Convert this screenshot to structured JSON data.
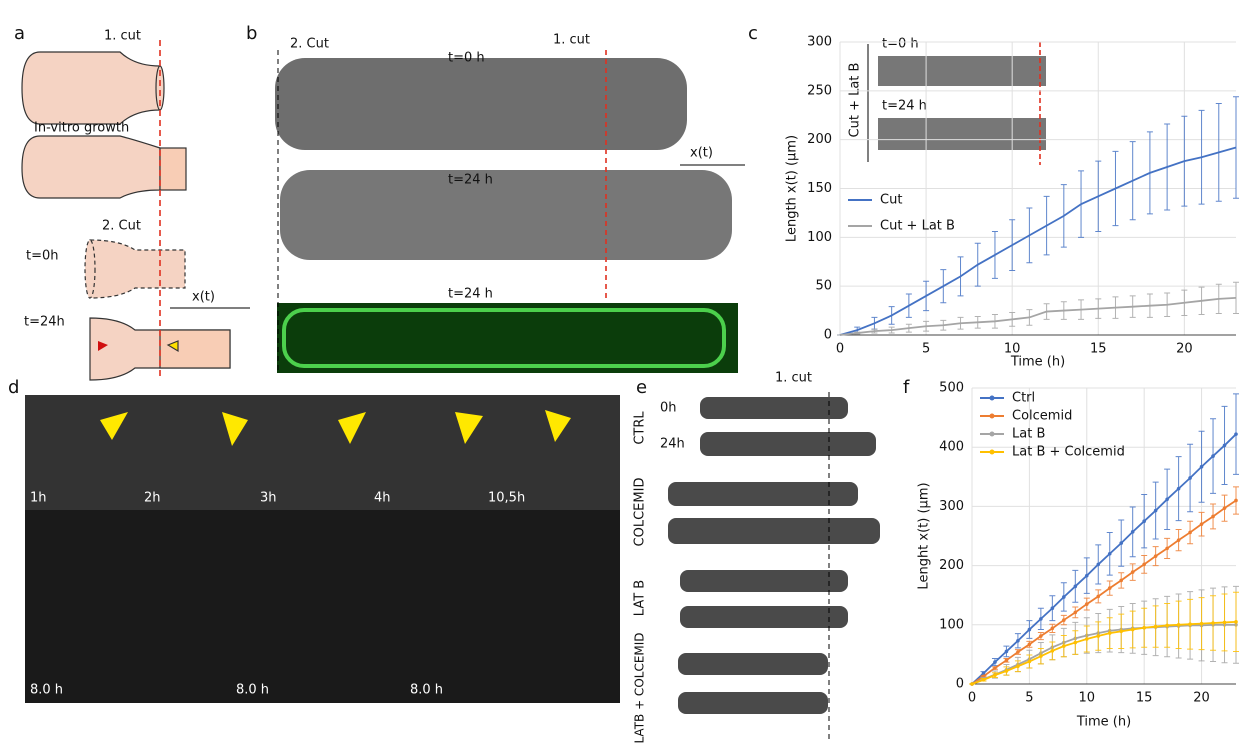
{
  "panel_labels": [
    "a",
    "b",
    "c",
    "d",
    "e",
    "f"
  ],
  "panel_a": {
    "cut1": "1. cut",
    "growth": "In-vitro growth",
    "cut2": "2. Cut",
    "t0": "t=0h",
    "t24": "t=24h",
    "xt": "x(t)"
  },
  "panel_b": {
    "cut2": "2. Cut",
    "cut1": "1. cut",
    "t0": "t=0 h",
    "t24": "t=24 h",
    "xt": "x(t)",
    "t24b": "t=24 h"
  },
  "panel_c_inset": {
    "t0": "t=0 h",
    "t24": "t=24 h",
    "condition": "Cut + Lat B"
  },
  "panel_d": {
    "times": [
      "1h",
      "2h",
      "3h",
      "4h",
      "10,5h"
    ],
    "bottom_times": [
      "8.0 h",
      "8.0 h",
      "8.0 h"
    ]
  },
  "panel_e": {
    "cut1": "1. cut",
    "t0": "0h",
    "t24": "24h",
    "conditions": [
      "CTRL",
      "COLCEMID",
      "LAT B",
      "LATB + COLCEMID"
    ]
  },
  "chart_data": [
    {
      "type": "line",
      "xlabel": "Time (h)",
      "ylabel": "Length x(t)  (µm)",
      "xlim": [
        0,
        23
      ],
      "ylim": [
        0,
        300
      ],
      "xticks": [
        0,
        5,
        10,
        15,
        20
      ],
      "yticks": [
        0,
        50,
        100,
        150,
        200,
        250,
        300
      ],
      "grid": true,
      "legend": "center-left",
      "markers": false,
      "x": [
        0,
        1,
        2,
        3,
        4,
        5,
        6,
        7,
        8,
        9,
        10,
        11,
        12,
        13,
        14,
        15,
        16,
        17,
        18,
        19,
        20,
        21,
        22,
        23
      ],
      "series": [
        {
          "name": "Cut",
          "color": "#4472c4",
          "values": [
            0,
            5,
            12,
            20,
            30,
            40,
            50,
            60,
            72,
            82,
            92,
            102,
            112,
            122,
            134,
            142,
            150,
            158,
            166,
            172,
            178,
            182,
            187,
            192
          ],
          "errors": [
            0,
            3,
            6,
            9,
            12,
            15,
            17,
            20,
            22,
            24,
            26,
            28,
            30,
            32,
            34,
            36,
            38,
            40,
            42,
            44,
            46,
            48,
            50,
            52
          ]
        },
        {
          "name": "Cut + Lat B",
          "color": "#a5a5a5",
          "values": [
            0,
            2,
            4,
            5,
            7,
            9,
            10,
            12,
            13,
            14,
            16,
            18,
            24,
            25,
            26,
            27,
            28,
            29,
            30,
            31,
            33,
            35,
            37,
            38
          ],
          "errors": [
            0,
            1,
            2,
            3,
            4,
            5,
            5,
            6,
            6,
            7,
            7,
            8,
            8,
            9,
            10,
            10,
            11,
            11,
            12,
            12,
            13,
            14,
            15,
            16
          ]
        }
      ]
    },
    {
      "type": "line",
      "xlabel": "Time (h)",
      "ylabel": "Lenght x(t)  (µm)",
      "xlim": [
        0,
        23
      ],
      "ylim": [
        0,
        500
      ],
      "xticks": [
        0,
        5,
        10,
        15,
        20
      ],
      "yticks": [
        0,
        100,
        200,
        300,
        400,
        500
      ],
      "grid": true,
      "legend": "upper-left",
      "markers": true,
      "x": [
        0,
        1,
        2,
        3,
        4,
        5,
        6,
        7,
        8,
        9,
        10,
        11,
        12,
        13,
        14,
        15,
        16,
        17,
        18,
        19,
        20,
        21,
        22,
        23
      ],
      "series": [
        {
          "name": "Ctrl",
          "color": "#4472c4",
          "values": [
            0,
            18,
            37,
            55,
            73,
            92,
            110,
            128,
            147,
            165,
            183,
            202,
            220,
            238,
            257,
            275,
            293,
            312,
            330,
            348,
            367,
            385,
            403,
            422
          ],
          "errors": [
            0,
            3,
            6,
            9,
            12,
            15,
            18,
            21,
            24,
            27,
            30,
            33,
            36,
            39,
            42,
            45,
            48,
            51,
            54,
            57,
            60,
            63,
            66,
            68
          ]
        },
        {
          "name": "Colcemid",
          "color": "#ed7d31",
          "values": [
            0,
            13,
            27,
            40,
            54,
            67,
            81,
            94,
            108,
            121,
            135,
            148,
            162,
            175,
            189,
            202,
            216,
            229,
            243,
            256,
            270,
            283,
            297,
            310
          ],
          "errors": [
            0,
            1,
            2,
            3,
            4,
            5,
            6,
            7,
            8,
            9,
            10,
            11,
            12,
            13,
            14,
            15,
            16,
            17,
            18,
            19,
            20,
            21,
            22,
            23
          ]
        },
        {
          "name": "Lat B",
          "color": "#a5a5a5",
          "values": [
            0,
            8,
            16,
            24,
            33,
            42,
            52,
            62,
            70,
            77,
            82,
            86,
            90,
            92,
            94,
            95,
            96,
            97,
            98,
            99,
            99,
            100,
            100,
            100
          ],
          "errors": [
            0,
            3,
            6,
            9,
            12,
            15,
            18,
            21,
            24,
            27,
            30,
            33,
            36,
            39,
            42,
            45,
            48,
            51,
            54,
            57,
            60,
            62,
            64,
            65
          ]
        },
        {
          "name": "Lat B + Colcemid",
          "color": "#ffc000",
          "values": [
            0,
            7,
            15,
            22,
            30,
            38,
            47,
            56,
            64,
            70,
            76,
            81,
            86,
            89,
            92,
            95,
            97,
            99,
            100,
            101,
            102,
            103,
            104,
            105
          ],
          "errors": [
            0,
            2,
            4,
            7,
            9,
            11,
            13,
            15,
            18,
            20,
            22,
            24,
            26,
            29,
            31,
            33,
            35,
            37,
            40,
            42,
            44,
            46,
            48,
            50
          ]
        }
      ]
    }
  ]
}
